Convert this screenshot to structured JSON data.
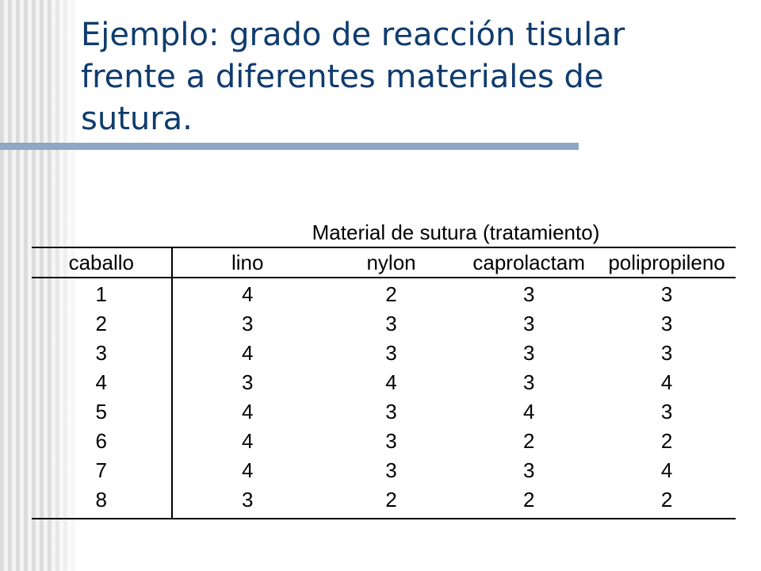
{
  "slide": {
    "title": "Ejemplo: grado de reacción tisular frente a diferentes materiales de sutura.",
    "accent_color": "#0f3c6e",
    "rule_color": "#8fa6c4"
  },
  "table": {
    "caption": "Material de sutura (tratamiento)",
    "headers": [
      "caballo",
      "lino",
      "nylon",
      "caprolactam",
      "polipropileno"
    ],
    "rows": [
      [
        "1",
        "4",
        "2",
        "3",
        "3"
      ],
      [
        "2",
        "3",
        "3",
        "3",
        "3"
      ],
      [
        "3",
        "4",
        "3",
        "3",
        "3"
      ],
      [
        "4",
        "3",
        "4",
        "3",
        "4"
      ],
      [
        "5",
        "4",
        "3",
        "4",
        "3"
      ],
      [
        "6",
        "4",
        "3",
        "2",
        "2"
      ],
      [
        "7",
        "4",
        "3",
        "3",
        "4"
      ],
      [
        "8",
        "3",
        "2",
        "2",
        "2"
      ]
    ]
  }
}
